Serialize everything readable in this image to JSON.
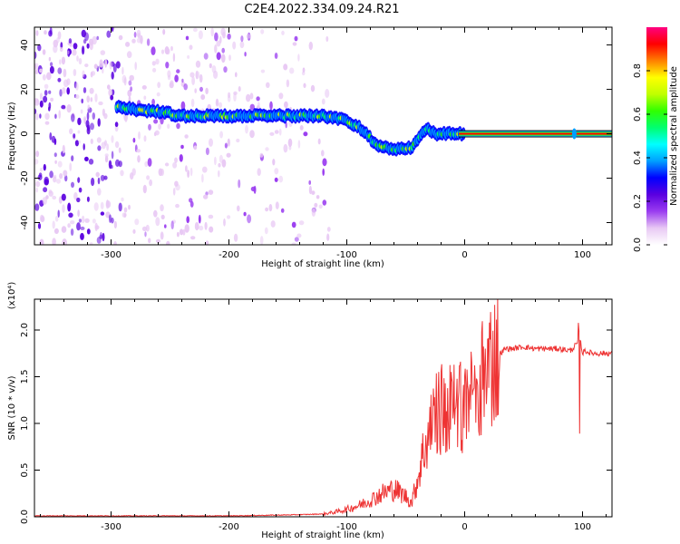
{
  "title": "C2E4.2022.334.09.24.R21",
  "colorbar": {
    "label": "Normalized spectral amplitude",
    "ticks": [
      "0.0",
      "0.2",
      "0.4",
      "0.6",
      "0.8"
    ],
    "tick_values": [
      0.0,
      0.2,
      0.4,
      0.6,
      0.8
    ],
    "range": [
      0.0,
      1.0
    ],
    "colors": [
      "#ffffff",
      "#e8c8f4",
      "#9a3cf0",
      "#5a00e0",
      "#0000ff",
      "#00a0ff",
      "#00ffff",
      "#00ff70",
      "#30ff00",
      "#c0ff00",
      "#ffff00",
      "#ff8000",
      "#ff0000",
      "#ff0080"
    ]
  },
  "chart_data": [
    {
      "type": "heatmap",
      "xlabel": "Height of straight line (km)",
      "ylabel": "Frequency (Hz)",
      "xlim": [
        -365,
        125
      ],
      "ylim": [
        -50,
        48
      ],
      "xticks": [
        -300,
        -200,
        -100,
        0,
        100
      ],
      "yticks": [
        -40,
        -20,
        0,
        20,
        40
      ],
      "ridge": {
        "x": [
          -295,
          -280,
          -260,
          -240,
          -220,
          -200,
          -180,
          -160,
          -140,
          -120,
          -100,
          -90,
          -80,
          -75,
          -70,
          -60,
          -50,
          -45,
          -40,
          -35,
          -30,
          -25,
          -20,
          -10,
          0,
          125
        ],
        "y": [
          12,
          11,
          10,
          8,
          8,
          8,
          8,
          8,
          8,
          8,
          6,
          3,
          -2,
          -5,
          -6,
          -7,
          -7,
          -6,
          -3,
          1,
          2,
          0,
          0,
          0,
          0,
          0
        ]
      },
      "colormap": "rainbow"
    },
    {
      "type": "line",
      "xlabel": "Height of straight line (km)",
      "ylabel": "SNR (10 * v/v)",
      "y_multiplier": "(x10⁴)",
      "xlim": [
        -365,
        125
      ],
      "ylim": [
        0.0,
        2.33
      ],
      "xticks": [
        -300,
        -200,
        -100,
        0,
        100
      ],
      "yticks": [
        0.0,
        0.5,
        1.0,
        1.5,
        2.0
      ],
      "ytick_labels": [
        "0.0",
        "0.5",
        "1.0",
        "1.5",
        "2.0"
      ],
      "color": "#ee3333",
      "series": [
        {
          "x": [
            -365,
            -300,
            -200,
            -150,
            -120,
            -110,
            -100,
            -90,
            -80,
            -70,
            -60,
            -50,
            -45,
            -40,
            -35,
            -30,
            -25,
            -20,
            -15,
            -10,
            -5,
            0,
            5,
            10,
            15,
            20,
            25,
            30,
            35,
            40,
            50,
            60,
            70,
            80,
            90,
            95,
            98,
            100,
            102,
            105,
            110,
            125
          ],
          "y": [
            0.01,
            0.01,
            0.01,
            0.02,
            0.03,
            0.05,
            0.08,
            0.12,
            0.18,
            0.25,
            0.3,
            0.22,
            0.15,
            0.4,
            0.7,
            0.9,
            1.05,
            1.15,
            1.1,
            1.2,
            1.25,
            1.2,
            1.25,
            1.35,
            1.5,
            1.62,
            1.7,
            1.75,
            1.8,
            1.8,
            1.82,
            1.8,
            1.8,
            1.8,
            1.78,
            1.85,
            1.9,
            1.75,
            1.78,
            1.76,
            1.75,
            1.75
          ]
        }
      ]
    }
  ]
}
